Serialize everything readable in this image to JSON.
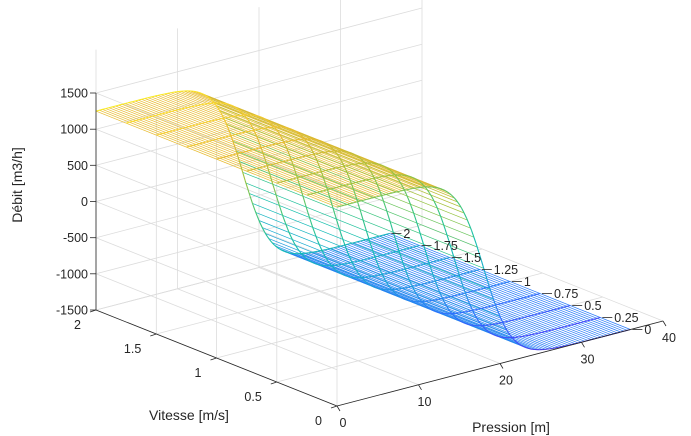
{
  "chart_data": {
    "type": "surface",
    "title": "",
    "xlabel": "Pression [m]",
    "ylabel": "Vitesse [m/s]",
    "zlabel": "Débit [m3/h]",
    "xlim": [
      0,
      40
    ],
    "ylim": [
      0,
      2
    ],
    "zlim": [
      -1500,
      1500
    ],
    "x_ticks": [
      "0",
      "10",
      "20",
      "30",
      "40"
    ],
    "y_ticks": [
      "0",
      "0.5",
      "1",
      "1.5",
      "2"
    ],
    "z_ticks": [
      "1500",
      "1000",
      "500",
      "0",
      "-500",
      "-1000",
      "-1500"
    ],
    "contour_levels": [
      "2",
      "1.75",
      "1.5",
      "1.25",
      "1",
      "0.75",
      "0.5",
      "0.25",
      "0"
    ],
    "grid": true,
    "colormap": "parula",
    "surface": {
      "x_range": [
        0,
        36
      ],
      "y_range": [
        0,
        2
      ],
      "z_high": 1250,
      "z_low": -1500,
      "transition_center_x": 18,
      "transition_width_x": 7.5
    },
    "colors": {
      "parula": [
        "#3e26a8",
        "#4743f8",
        "#2c73fe",
        "#1ba7d6",
        "#12bfb0",
        "#3ec678",
        "#9bc33e",
        "#e6b82f",
        "#fad531",
        "#f9fb15"
      ]
    }
  }
}
